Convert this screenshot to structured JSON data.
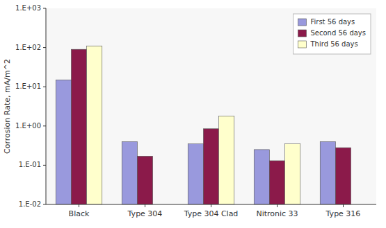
{
  "chart_data": {
    "type": "bar",
    "categories": [
      "Black",
      "Type 304",
      "Type 304 Clad",
      "Nitronic 33",
      "Type 316"
    ],
    "series": [
      {
        "name": "First 56 days",
        "color": "#9999DD",
        "values": [
          15.0,
          0.4,
          0.35,
          0.25,
          0.4
        ]
      },
      {
        "name": "Second 56 days",
        "color": "#8B1A4A",
        "values": [
          90.0,
          0.17,
          0.85,
          0.13,
          0.28
        ]
      },
      {
        "name": "Third 56 days",
        "color": "#FFFFCC",
        "values": [
          110.0,
          null,
          1.8,
          0.35,
          null
        ]
      }
    ],
    "ylabel": "Corrosion Rate, mA/m^2",
    "log": "y",
    "ylim": [
      0.01,
      1000
    ],
    "yticks": [
      {
        "value": 0.01,
        "label": "1.E-02"
      },
      {
        "value": 0.1,
        "label": "1.E-01"
      },
      {
        "value": 1,
        "label": "1.E+00"
      },
      {
        "value": 10,
        "label": "1.E+01"
      },
      {
        "value": 100,
        "label": "1.E+02"
      },
      {
        "value": 1000,
        "label": "1.E+03"
      }
    ],
    "grid": false,
    "legend": "upper right"
  }
}
